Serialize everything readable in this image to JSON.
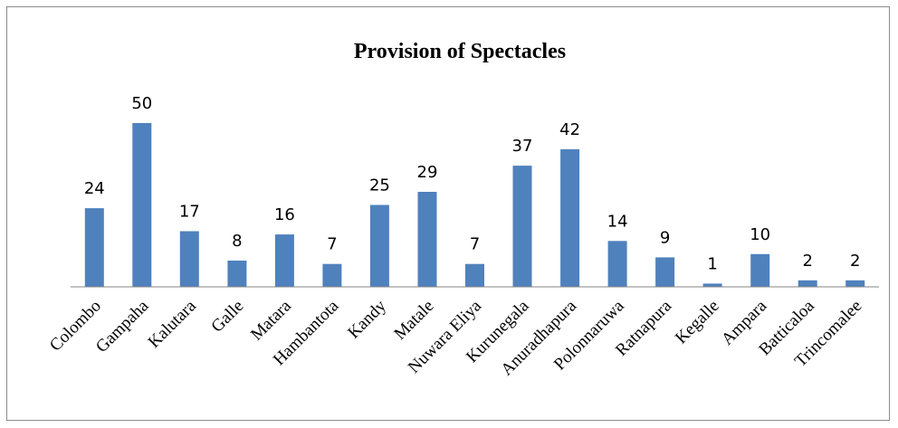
{
  "chart_data": {
    "type": "bar",
    "title": "Provision of Spectacles",
    "xlabel": "",
    "ylabel": "",
    "categories": [
      "Colombo",
      "Gampaha",
      "Kalutara",
      "Galle",
      "Matara",
      "Hambantota",
      "Kandy",
      "Matale",
      "Nuwara Eliya",
      "Kurunegala",
      "Anuradhapura",
      "Polonnaruwa",
      "Ratnapura",
      "Kegalle",
      "Ampara",
      "Batticaloa",
      "Trincomalee"
    ],
    "values": [
      24,
      50,
      17,
      8,
      16,
      7,
      25,
      29,
      7,
      37,
      42,
      14,
      9,
      1,
      10,
      2,
      2
    ],
    "ylim": [
      0,
      50
    ],
    "grid": false,
    "legend": "none",
    "colors": {
      "bar": "#4f81bd",
      "axis": "#868686"
    }
  }
}
